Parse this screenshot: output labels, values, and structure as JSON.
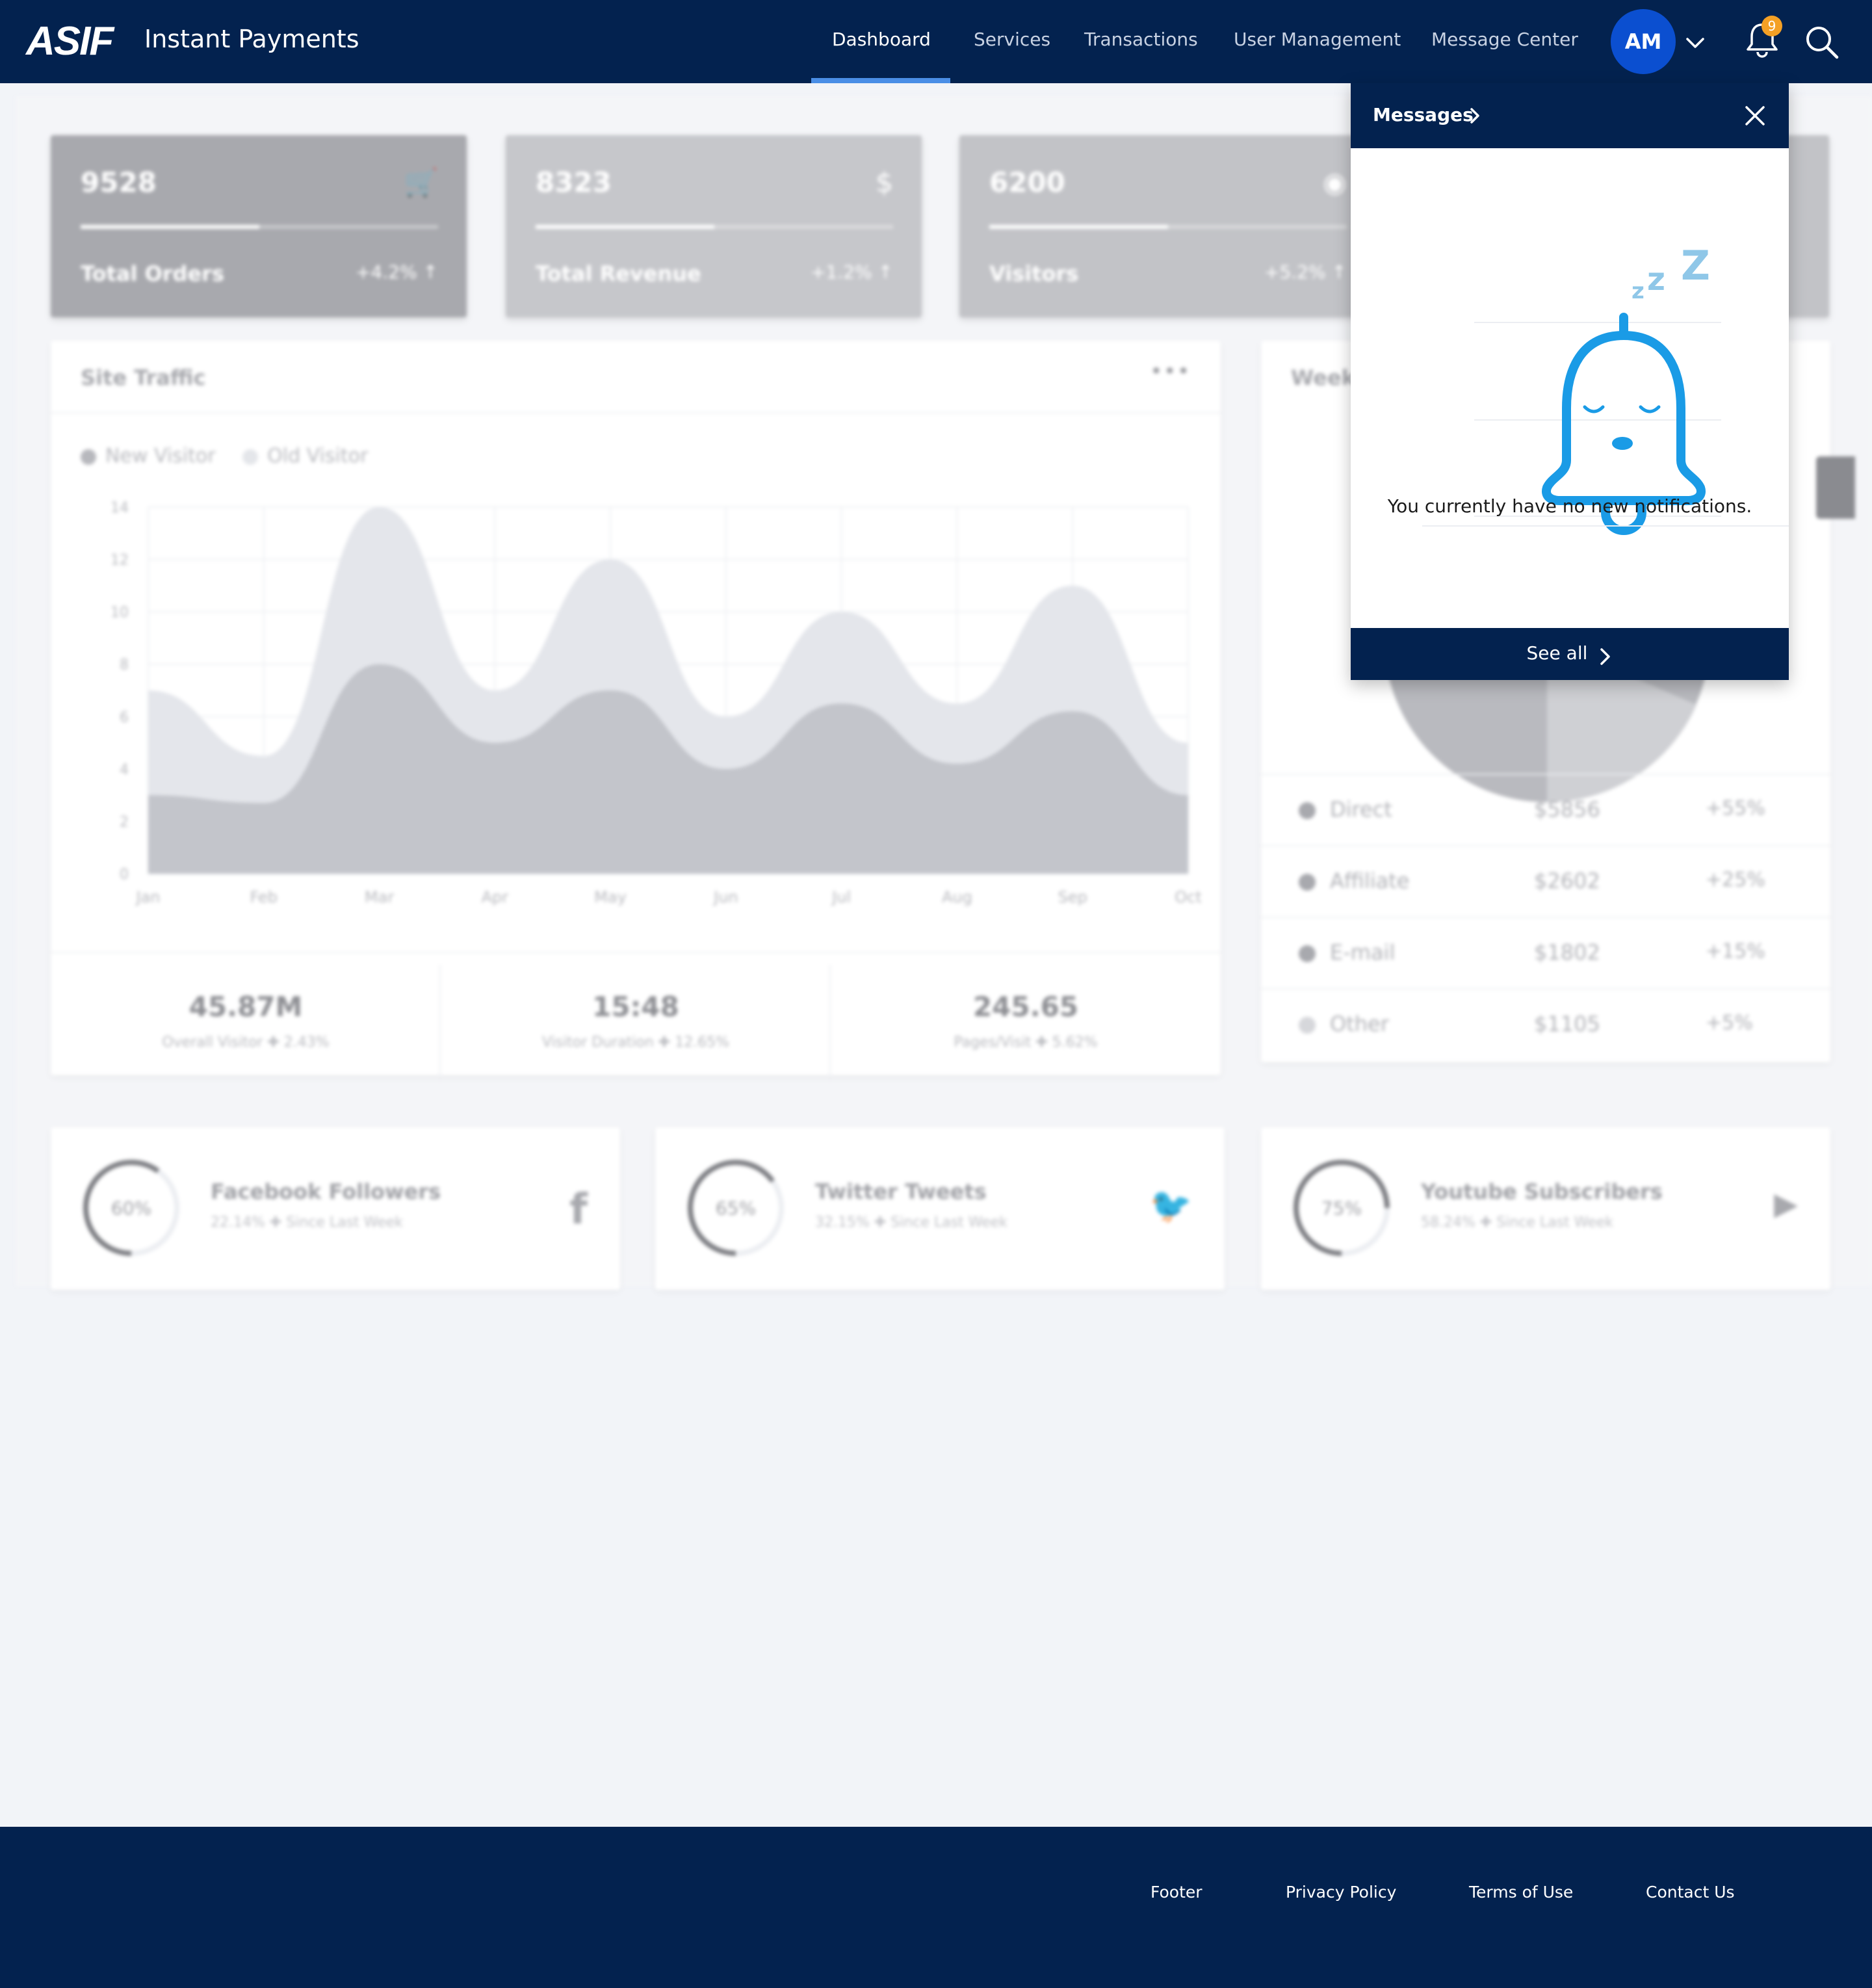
{
  "header": {
    "logo": "ASIF",
    "app_title": "Instant Payments",
    "nav": [
      {
        "label": "Dashboard",
        "active": true
      },
      {
        "label": "Services"
      },
      {
        "label": "Transactions"
      },
      {
        "label": "User Management"
      },
      {
        "label": "Message Center"
      }
    ],
    "avatar_initials": "AM",
    "notification_count": "9",
    "icons": [
      "chevron-down-icon",
      "bell-icon",
      "search-icon"
    ],
    "colors": {
      "bar": "#03224f",
      "accent": "#4a8ee6",
      "avatar": "#0b4fd0",
      "badge": "#f4a025"
    }
  },
  "dashboard": {
    "stats": [
      {
        "value": "9528",
        "label": "Total Orders",
        "change": "+4.2% ↑",
        "icon": "cart-icon",
        "progress": 0.5
      },
      {
        "value": "8323",
        "label": "Total Revenue",
        "change": "+1.2% ↑",
        "icon": "dollar-icon",
        "progress": 0.5
      },
      {
        "value": "6200",
        "label": "Visitors",
        "change": "+5.2% ↑",
        "icon": "eye-icon",
        "progress": 0.5
      }
    ],
    "site_traffic": {
      "title": "Site Traffic",
      "menu": "•••",
      "legend": [
        "New Visitor",
        "Old Visitor"
      ],
      "kpis": [
        {
          "value": "45.87M",
          "label": "Overall Visitor ✚ 2.43%"
        },
        {
          "value": "15:48",
          "label": "Visitor Duration ✚ 12.65%"
        },
        {
          "value": "245.65",
          "label": "Pages/Visit ✚ 5.62%"
        }
      ]
    },
    "weekly": {
      "title": "Week",
      "rows": [
        {
          "name": "Direct",
          "amount": "$5856",
          "pct": "+55%"
        },
        {
          "name": "Affiliate",
          "amount": "$2602",
          "pct": "+25%"
        },
        {
          "name": "E-mail",
          "amount": "$1802",
          "pct": "+15%"
        },
        {
          "name": "Other",
          "amount": "$1105",
          "pct": "+5%"
        }
      ]
    },
    "social": [
      {
        "pct": "60%",
        "title": "Facebook Followers",
        "sub": "22.14% ✚ Since Last Week",
        "icon": "facebook-icon",
        "glyph": "f",
        "fill": 0.6
      },
      {
        "pct": "65%",
        "title": "Twitter Tweets",
        "sub": "32.15% ✚ Since Last Week",
        "icon": "twitter-icon",
        "glyph": "🐦",
        "fill": 0.65
      },
      {
        "pct": "75%",
        "title": "Youtube Subscribers",
        "sub": "58.24% ✚ Since Last Week",
        "icon": "youtube-icon",
        "glyph": "▶",
        "fill": 0.75
      }
    ]
  },
  "chart_data": {
    "type": "area",
    "title": "Site Traffic",
    "categories": [
      "Jan",
      "Feb",
      "Mar",
      "Apr",
      "May",
      "Jun",
      "Jul",
      "Aug",
      "Sep",
      "Oct"
    ],
    "series": [
      {
        "name": "New Visitor",
        "values": [
          3,
          2.7,
          8,
          5,
          7,
          4,
          6.5,
          4.2,
          6.2,
          3
        ]
      },
      {
        "name": "Old Visitor",
        "values": [
          7,
          4.5,
          14,
          7,
          12,
          6,
          10,
          6.5,
          11,
          5
        ]
      }
    ],
    "ylim": [
      0,
      14
    ],
    "yticks": [
      0,
      2,
      4,
      6,
      8,
      10,
      12,
      14
    ],
    "grid": true,
    "legend": "top-left"
  },
  "messages": {
    "title": "Messages",
    "empty_text": "You currently have no new notifications.",
    "see_all": "See all",
    "illustration": "sleeping-bell-illustration",
    "zzz": "Z"
  },
  "footer": {
    "links": [
      "Footer",
      "Privacy Policy",
      "Terms of Use",
      "Contact Us"
    ]
  }
}
